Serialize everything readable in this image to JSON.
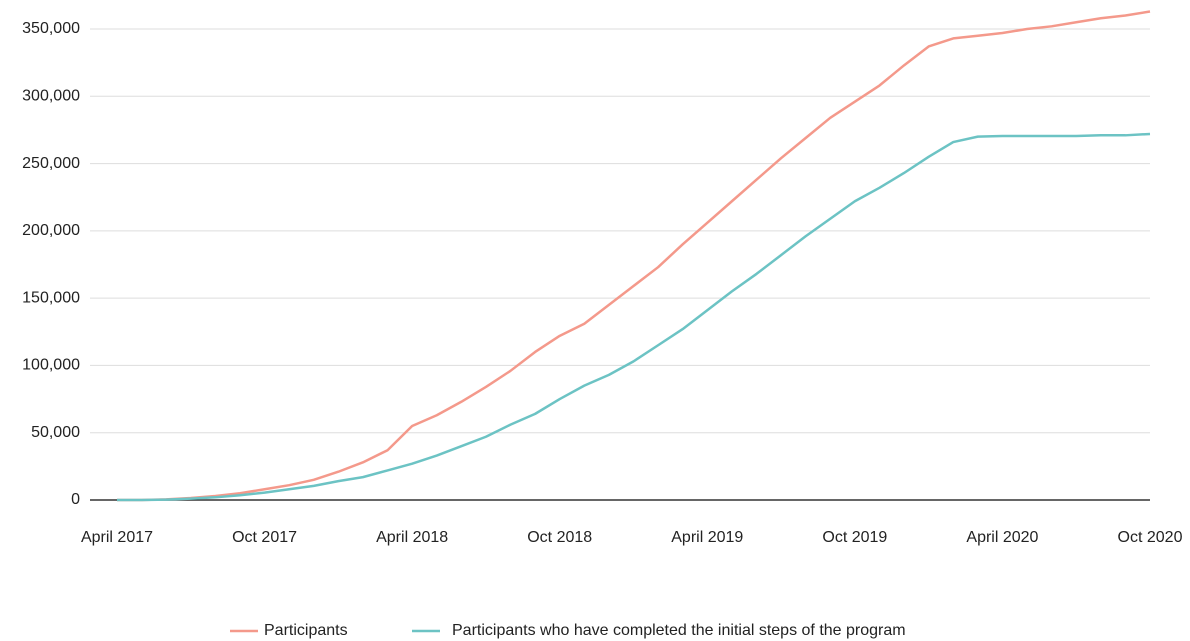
{
  "chart_data": {
    "type": "line",
    "categories": [
      "April 2017",
      null,
      null,
      null,
      null,
      null,
      "Oct 2017",
      null,
      null,
      null,
      null,
      null,
      "April 2018",
      null,
      null,
      null,
      null,
      null,
      "Oct 2018",
      null,
      null,
      null,
      null,
      null,
      "April 2019",
      null,
      null,
      null,
      null,
      null,
      "Oct 2019",
      null,
      null,
      null,
      null,
      null,
      "April 2020",
      null,
      null,
      null,
      null,
      null,
      "Oct 2020"
    ],
    "series": [
      {
        "name": "Participants",
        "color": "#f4998b",
        "values": [
          0,
          0,
          500,
          1500,
          3000,
          5000,
          8000,
          11000,
          15000,
          21000,
          28000,
          37000,
          55000,
          63000,
          73000,
          84000,
          96000,
          110000,
          122000,
          131000,
          145000,
          159000,
          173000,
          190000,
          206000,
          222000,
          238000,
          254000,
          269000,
          284000,
          296000,
          308000,
          323000,
          337000,
          343000,
          345000,
          347000,
          350000,
          352000,
          355000,
          358000,
          360000,
          363000
        ]
      },
      {
        "name": "Participants who have completed the initial steps of the program",
        "color": "#6cc3c4",
        "values": [
          0,
          0,
          300,
          1000,
          2000,
          3500,
          5500,
          8000,
          10500,
          14000,
          17000,
          22000,
          27000,
          33000,
          40000,
          47000,
          56000,
          64000,
          75000,
          85000,
          93000,
          103000,
          115000,
          127000,
          141000,
          155000,
          168000,
          182000,
          196000,
          209000,
          222000,
          232000,
          243000,
          255000,
          266000,
          270000,
          270500,
          270500,
          270500,
          270500,
          271000,
          271000,
          272000
        ]
      }
    ],
    "ylim": [
      0,
      350000
    ],
    "yticks": [
      0,
      {
        "value": 50000,
        "label": "50,000"
      },
      {
        "value": 100000,
        "label": "100,000"
      },
      {
        "value": 150000,
        "label": "150,000"
      },
      {
        "value": 200000,
        "label": "200,000"
      },
      {
        "value": 250000,
        "label": "250,000"
      },
      {
        "value": 300000,
        "label": "300,000"
      },
      {
        "value": 350000,
        "label": "350,000"
      }
    ],
    "grid": true,
    "legend": "bottom"
  }
}
